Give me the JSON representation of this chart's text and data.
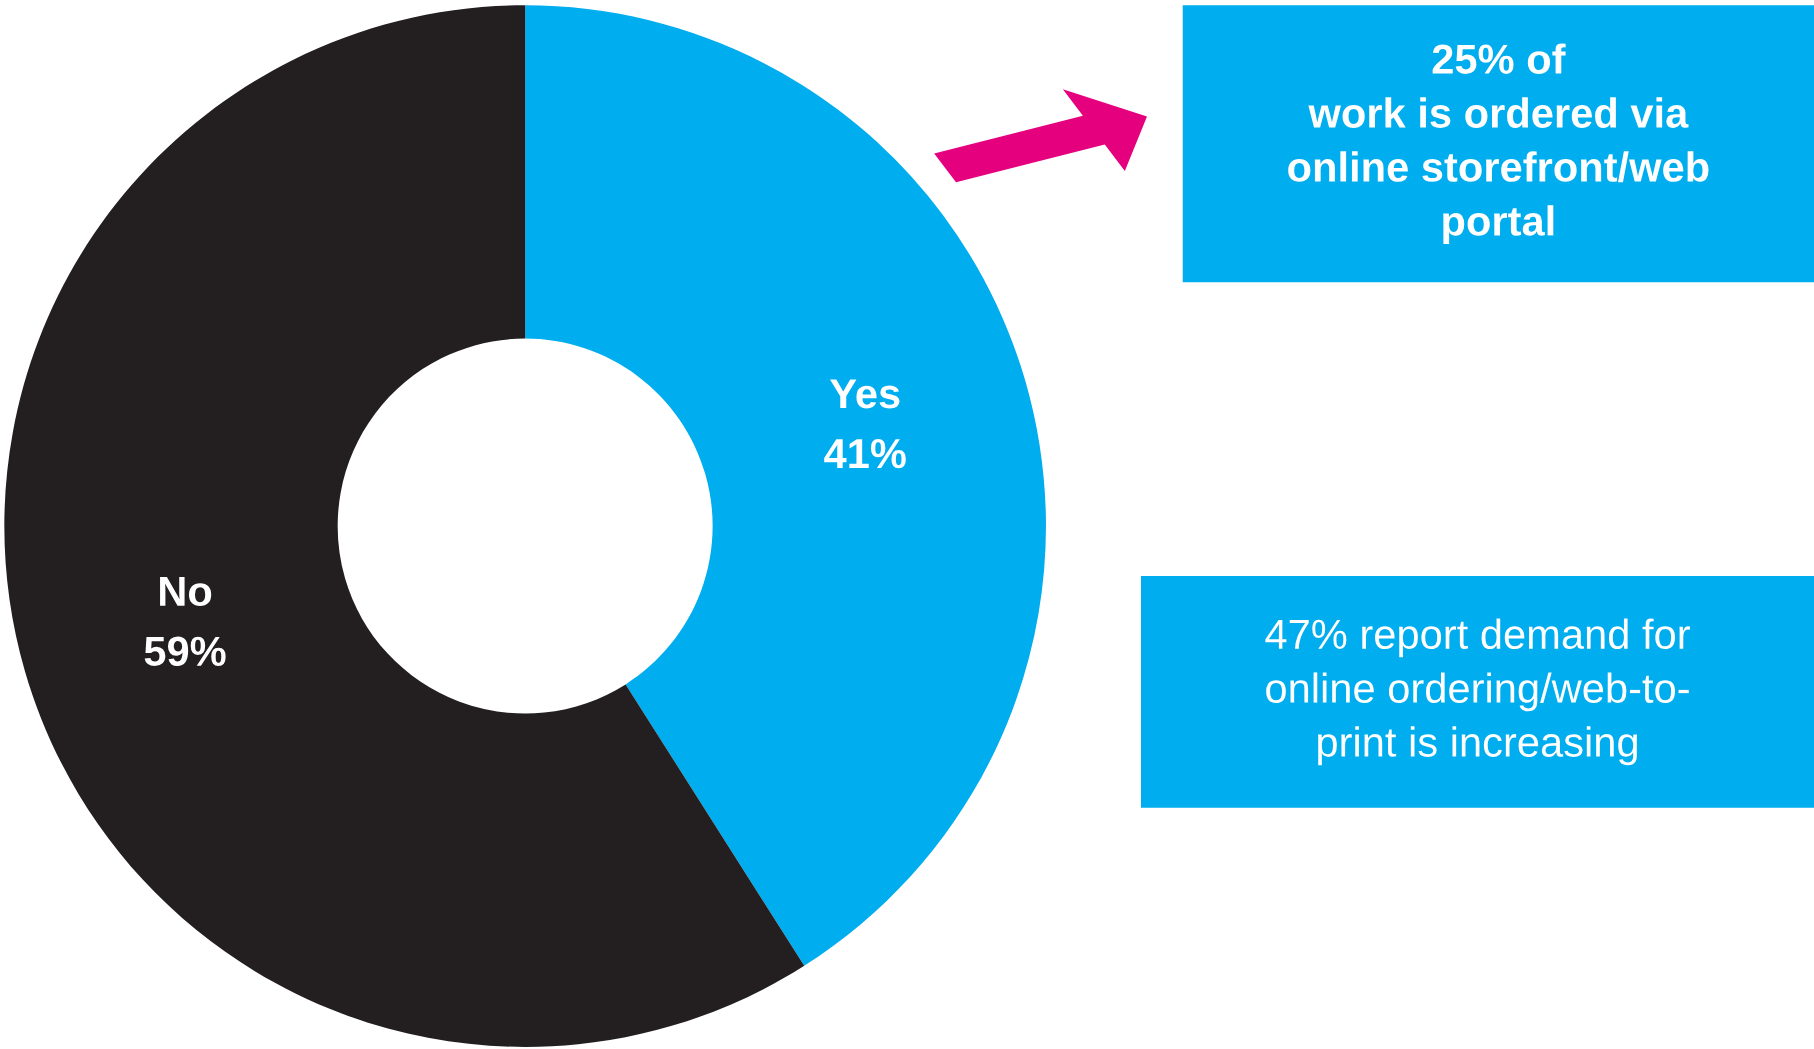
{
  "chart_data": {
    "type": "donut",
    "categories": [
      "Yes",
      "No"
    ],
    "values": [
      41,
      59
    ],
    "colors": [
      "#00adee",
      "#231f20"
    ],
    "value_labels": [
      "41%",
      "59%"
    ],
    "annotations": [
      "25% of\nwork is ordered via\nonline storefront/web\nportal",
      "47% report demand for\nonline ordering/web-to-\nprint is increasing"
    ],
    "legend": false
  }
}
